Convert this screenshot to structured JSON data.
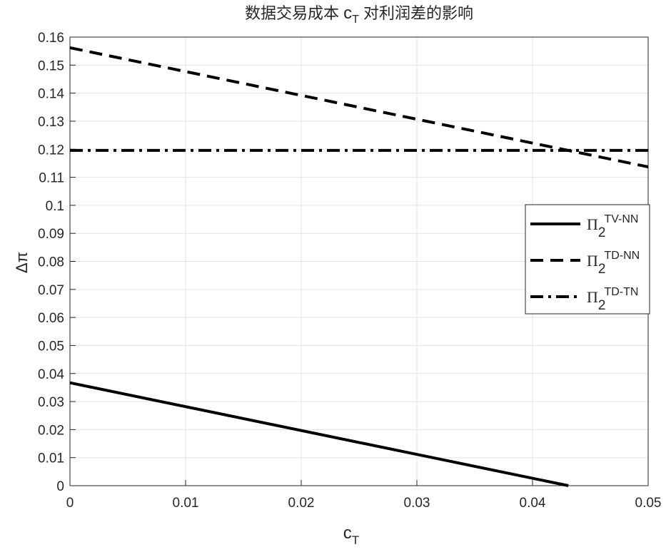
{
  "chart_data": {
    "type": "line",
    "title": {
      "text": "数据交易成本",
      "symbol": "c",
      "subscript": "T",
      "text_after": "对利润差的影响"
    },
    "x_label": {
      "symbol": "c",
      "subscript": "T"
    },
    "y_label": "Δπ",
    "xlim": [
      0,
      0.05
    ],
    "xticks": [
      0,
      0.01,
      0.02,
      0.03,
      0.04,
      0.05
    ],
    "ylim": [
      0,
      0.16
    ],
    "yticks": [
      0,
      0.01,
      0.02,
      0.03,
      0.04,
      0.05,
      0.06,
      0.07,
      0.08,
      0.09,
      0.1,
      0.11,
      0.12,
      0.13,
      0.14,
      0.15,
      0.16
    ],
    "grid": true,
    "legend": "east",
    "series": [
      {
        "name": "Π",
        "name_subscript": "2",
        "name_superscript": "TV-NN",
        "color": "#000000",
        "linestyle": "-",
        "x": [
          0,
          0.0431
        ],
        "values": [
          0.0367,
          0
        ]
      },
      {
        "name": "Π",
        "name_subscript": "2",
        "name_superscript": "TD-NN",
        "color": "#000000",
        "linestyle": "--",
        "x": [
          0,
          0.05
        ],
        "values": [
          0.1562,
          0.1137
        ]
      },
      {
        "name": "Π",
        "name_subscript": "2",
        "name_superscript": "TD-TN",
        "color": "#000000",
        "linestyle": "-.",
        "x": [
          0,
          0.05
        ],
        "values": [
          0.1196,
          0.1196
        ]
      }
    ]
  }
}
